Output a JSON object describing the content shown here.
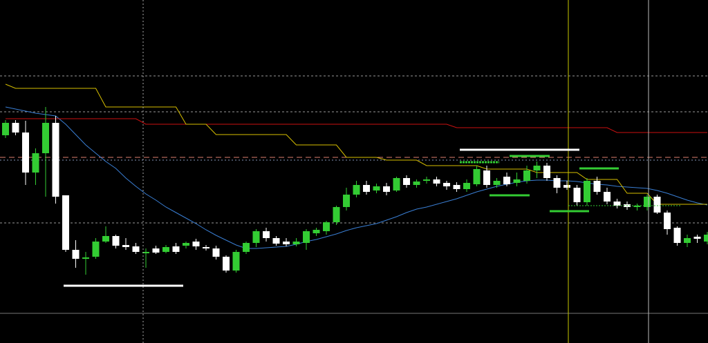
{
  "chart_data": {
    "type": "candlestick",
    "ylim": [
      0,
      497
    ],
    "background": "#000000",
    "up_color": "#33cc33",
    "down_color": "#ffffff",
    "categories": [
      null,
      null,
      null,
      null,
      null,
      null,
      null,
      null,
      null,
      null,
      null,
      null,
      null,
      null,
      null,
      null,
      null,
      null,
      null,
      null,
      null,
      null,
      null,
      null,
      null,
      null,
      null,
      null,
      null,
      null,
      null,
      null,
      null,
      null,
      null,
      null,
      null,
      null,
      null,
      null,
      null,
      null,
      null,
      null,
      null,
      null,
      null,
      null,
      null,
      null,
      null,
      null,
      null,
      null,
      null,
      null,
      null,
      null,
      null,
      null,
      null,
      null,
      null,
      null,
      null,
      null,
      null,
      null,
      null,
      null,
      null
    ],
    "open": [
      301,
      319,
      305,
      247,
      275,
      319,
      214,
      135,
      122,
      125,
      147,
      155,
      142,
      140,
      130,
      137,
      132,
      140,
      141,
      147,
      139,
      137,
      125,
      105,
      132,
      145,
      162,
      152,
      147,
      143,
      145,
      159,
      162,
      175,
      197,
      215,
      229,
      221,
      227,
      221,
      239,
      229,
      235,
      237,
      232,
      229,
      223,
      230,
      250,
      229,
      241,
      232,
      235,
      250,
      257,
      239,
      229,
      225,
      204,
      235,
      219,
      205,
      201,
      197,
      197,
      212,
      189,
      167,
      145,
      154,
      147
    ],
    "high": [
      323,
      323,
      322,
      282,
      342,
      329,
      214,
      149,
      132,
      152,
      169,
      157,
      152,
      145,
      137,
      141,
      142,
      145,
      147,
      151,
      142,
      141,
      127,
      135,
      147,
      165,
      167,
      155,
      152,
      152,
      165,
      167,
      177,
      199,
      225,
      235,
      235,
      231,
      232,
      241,
      243,
      237,
      241,
      241,
      235,
      233,
      237,
      257,
      257,
      239,
      247,
      247,
      257,
      263,
      261,
      243,
      235,
      229,
      239,
      241,
      225,
      209,
      205,
      202,
      215,
      215,
      192,
      169,
      157,
      157,
      161
    ],
    "low": [
      297,
      301,
      229,
      229,
      212,
      202,
      132,
      109,
      99,
      122,
      145,
      137,
      135,
      129,
      109,
      129,
      130,
      129,
      137,
      135,
      134,
      121,
      102,
      102,
      129,
      139,
      147,
      141,
      140,
      140,
      135,
      155,
      157,
      171,
      192,
      211,
      215,
      217,
      214,
      219,
      225,
      225,
      231,
      227,
      222,
      219,
      219,
      227,
      225,
      225,
      227,
      227,
      231,
      239,
      235,
      217,
      222,
      199,
      199,
      215,
      201,
      195,
      193,
      192,
      192,
      187,
      157,
      141,
      139,
      145,
      143
    ],
    "close": [
      319,
      305,
      247,
      275,
      319,
      212,
      135,
      122,
      124,
      147,
      155,
      141,
      139,
      132,
      132,
      131,
      139,
      132,
      145,
      140,
      137,
      125,
      105,
      132,
      145,
      162,
      152,
      144,
      143,
      147,
      162,
      164,
      175,
      197,
      215,
      229,
      219,
      227,
      219,
      239,
      229,
      234,
      237,
      231,
      227,
      223,
      232,
      252,
      229,
      235,
      230,
      237,
      250,
      257,
      239,
      225,
      225,
      204,
      235,
      219,
      205,
      199,
      197,
      199,
      212,
      189,
      165,
      145,
      152,
      151,
      157
    ],
    "series": [
      {
        "color": "#3a7fd5",
        "values": [
          342,
          339,
          336,
          333,
          331,
          329,
          317,
          302,
          287,
          275,
          263,
          253,
          239,
          227,
          216,
          207,
          197,
          189,
          181,
          173,
          164,
          156,
          149,
          142,
          137,
          137,
          138,
          139,
          140,
          143,
          147,
          150,
          154,
          158,
          163,
          167,
          170,
          173,
          178,
          183,
          189,
          194,
          197,
          201,
          205,
          209,
          214,
          219,
          223,
          227,
          230,
          233,
          235,
          236,
          236,
          235,
          235,
          234,
          232,
          230,
          229,
          227,
          226,
          225,
          224,
          221,
          217,
          212,
          207,
          203,
          200
        ]
      },
      {
        "color": "#cc1111",
        "values": [
          325,
          325,
          325,
          325,
          325,
          325,
          325,
          325,
          325,
          325,
          325,
          325,
          325,
          325,
          317,
          317,
          317,
          317,
          317,
          317,
          317,
          317,
          317,
          317,
          317,
          317,
          317,
          317,
          317,
          317,
          317,
          317,
          317,
          317,
          317,
          317,
          317,
          317,
          317,
          317,
          317,
          317,
          317,
          317,
          317,
          312,
          312,
          312,
          312,
          312,
          312,
          312,
          312,
          312,
          312,
          312,
          312,
          312,
          312,
          312,
          312,
          305,
          305,
          305,
          305,
          305,
          305,
          305,
          305,
          305,
          305
        ]
      },
      {
        "color": "#d8c000",
        "values": [
          375,
          369,
          369,
          369,
          369,
          369,
          369,
          369,
          369,
          369,
          342,
          342,
          342,
          342,
          342,
          342,
          342,
          342,
          317,
          317,
          317,
          302,
          302,
          302,
          302,
          302,
          302,
          302,
          302,
          287,
          287,
          287,
          287,
          287,
          269,
          269,
          269,
          269,
          265,
          265,
          265,
          265,
          257,
          257,
          257,
          257,
          257,
          257,
          252,
          252,
          252,
          252,
          252,
          247,
          247,
          247,
          247,
          247,
          237,
          237,
          237,
          237,
          217,
          217,
          217,
          201,
          201,
          201,
          201,
          201,
          201
        ]
      }
    ],
    "hlines": [
      {
        "value": 387,
        "color": "#9a9a9a",
        "dash": "3 3"
      },
      {
        "value": 335,
        "color": "#9a9a9a",
        "dash": "3 3"
      },
      {
        "value": 269,
        "color": "#e08070",
        "dash": "8 5"
      },
      {
        "value": 265,
        "color": "#8899bb",
        "dash": "2 3"
      },
      {
        "value": 174,
        "color": "#9a9a9a",
        "dash": "3 3"
      },
      {
        "value": 43,
        "color": "#777777",
        "dash": "none"
      }
    ]
  }
}
